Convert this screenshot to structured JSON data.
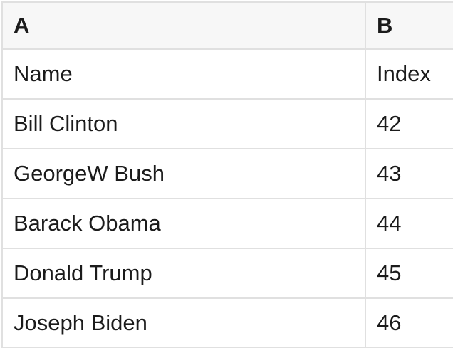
{
  "table": {
    "columns": [
      {
        "id": "A",
        "label": "A"
      },
      {
        "id": "B",
        "label": "B"
      }
    ],
    "rows": [
      [
        "Name",
        "Index"
      ],
      [
        "Bill Clinton",
        "42"
      ],
      [
        "GeorgeW Bush",
        "43"
      ],
      [
        "Barack Obama",
        "44"
      ],
      [
        "Donald Trump",
        "45"
      ],
      [
        "Joseph Biden",
        "46"
      ]
    ]
  },
  "colors": {
    "header_bg": "#f7f7f7",
    "border": "#e0e0e0",
    "text": "#1b1b1b"
  }
}
